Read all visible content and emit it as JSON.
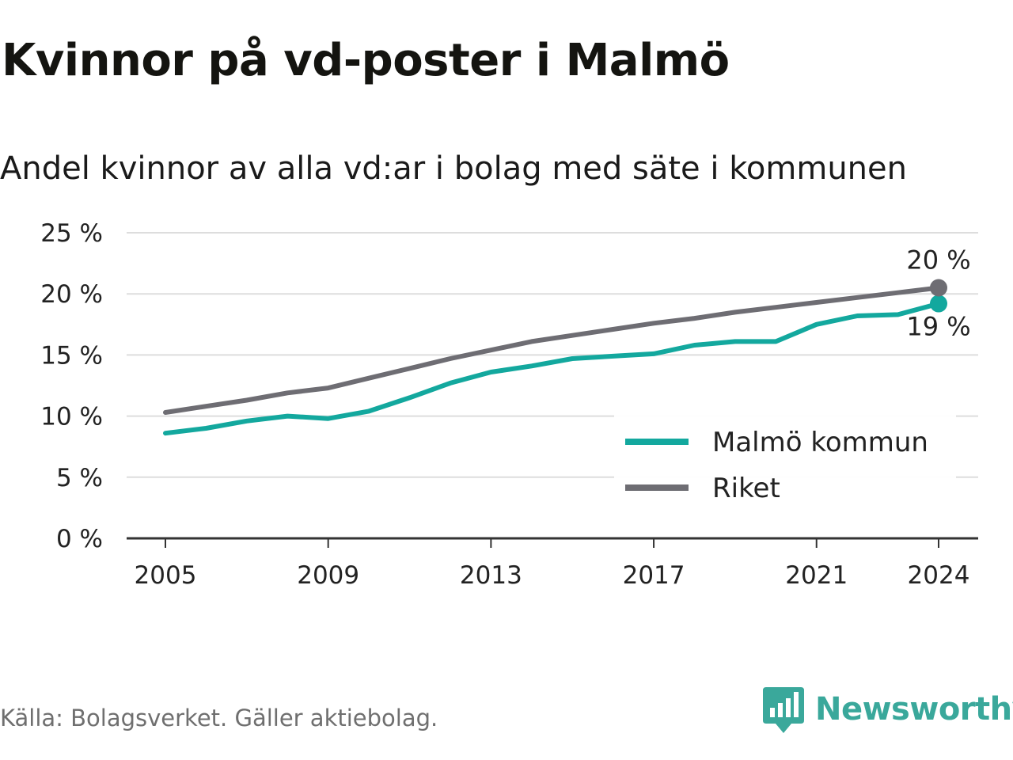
{
  "title": "Kvinnor på vd-poster i Malmö",
  "subtitle": "Andel kvinnor av alla vd:ar i bolag med säte i kommunen",
  "source": "Källa: Bolagsverket. Gäller aktiebolag.",
  "brand": "Newsworthy",
  "colors": {
    "malmo": "#13a89e",
    "riket": "#6e6d73",
    "grid": "#dddddd",
    "axis": "#333333",
    "brand": "#3aa89b"
  },
  "chart_data": {
    "type": "line",
    "x": [
      2005,
      2006,
      2007,
      2008,
      2009,
      2010,
      2011,
      2012,
      2013,
      2014,
      2015,
      2016,
      2017,
      2018,
      2019,
      2020,
      2021,
      2022,
      2023,
      2024
    ],
    "series": [
      {
        "name": "Malmö kommun",
        "color": "#13a89e",
        "values": [
          8.6,
          9.0,
          9.6,
          10.0,
          9.8,
          10.4,
          11.5,
          12.7,
          13.6,
          14.1,
          14.7,
          14.9,
          15.1,
          15.8,
          16.1,
          16.1,
          17.5,
          18.2,
          18.3,
          19.2
        ],
        "end_label": "19 %"
      },
      {
        "name": "Riket",
        "color": "#6e6d73",
        "values": [
          10.3,
          10.8,
          11.3,
          11.9,
          12.3,
          13.1,
          13.9,
          14.7,
          15.4,
          16.1,
          16.6,
          17.1,
          17.6,
          18.0,
          18.5,
          18.9,
          19.3,
          19.7,
          20.1,
          20.5
        ],
        "end_label": "20 %"
      }
    ],
    "xticks": [
      2005,
      2009,
      2013,
      2017,
      2021,
      2024
    ],
    "xtick_labels": [
      "2005",
      "2009",
      "2013",
      "2017",
      "2021",
      "2024"
    ],
    "yticks": [
      0,
      5,
      10,
      15,
      20,
      25
    ],
    "ytick_labels": [
      "0 %",
      "5 %",
      "10 %",
      "15 %",
      "20 %",
      "25 %"
    ],
    "ylim": [
      0,
      25
    ],
    "xlim": [
      2005,
      2024
    ],
    "grid": true,
    "legend": [
      "Malmö kommun",
      "Riket"
    ],
    "legend_position": "bottom-right",
    "xlabel": "",
    "ylabel": ""
  }
}
